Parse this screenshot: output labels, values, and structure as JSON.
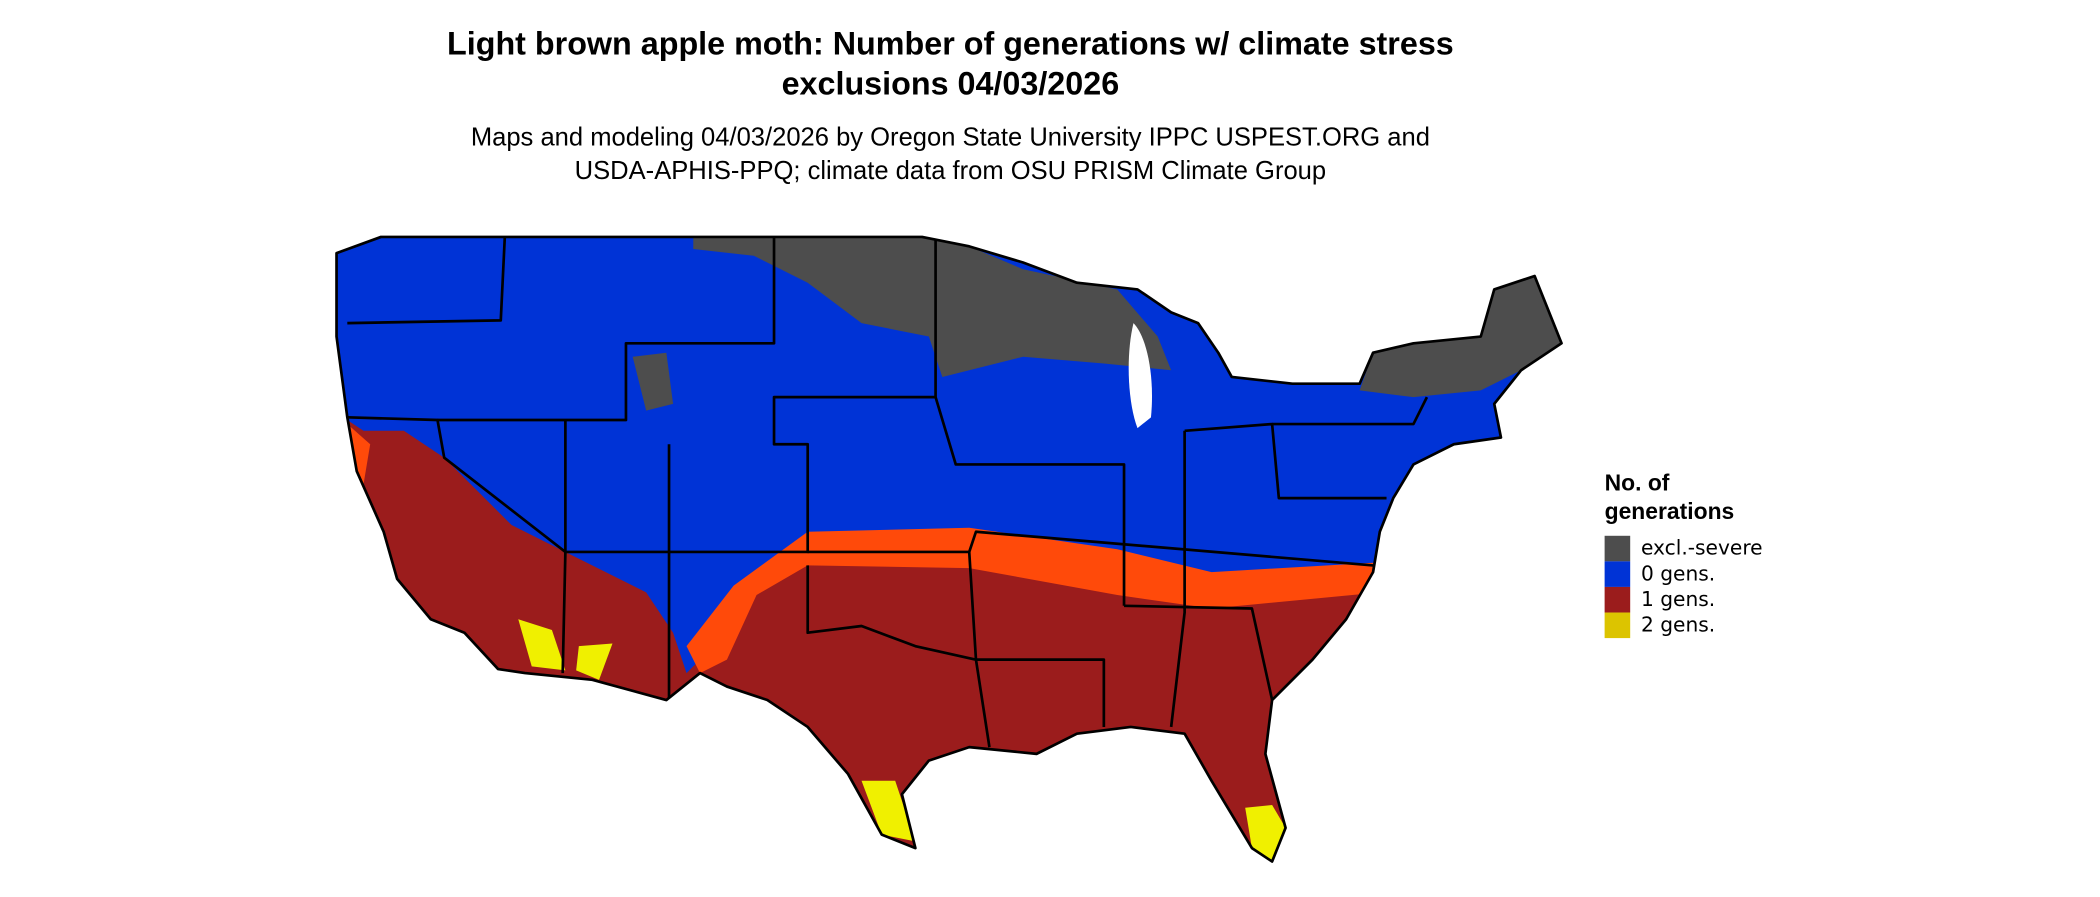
{
  "title": [
    "Light brown apple moth: Number of generations w/ climate stress",
    "exclusions 04/03/2026"
  ],
  "subtitle": [
    "Maps and modeling 04/03/2026 by Oregon State University IPPC USPEST.ORG and",
    "USDA-APHIS-PPQ; climate data from OSU PRISM Climate Group"
  ],
  "legend": {
    "title": [
      "No. of",
      "generations"
    ],
    "items": [
      {
        "label": "excl.-severe",
        "color": "#4d4d4d"
      },
      {
        "label": "0 gens.",
        "color": "#0033d6"
      },
      {
        "label": "1 gens.",
        "color": "#9b1c1c"
      },
      {
        "label": "2 gens.",
        "color": "#dcc400"
      }
    ]
  }
}
